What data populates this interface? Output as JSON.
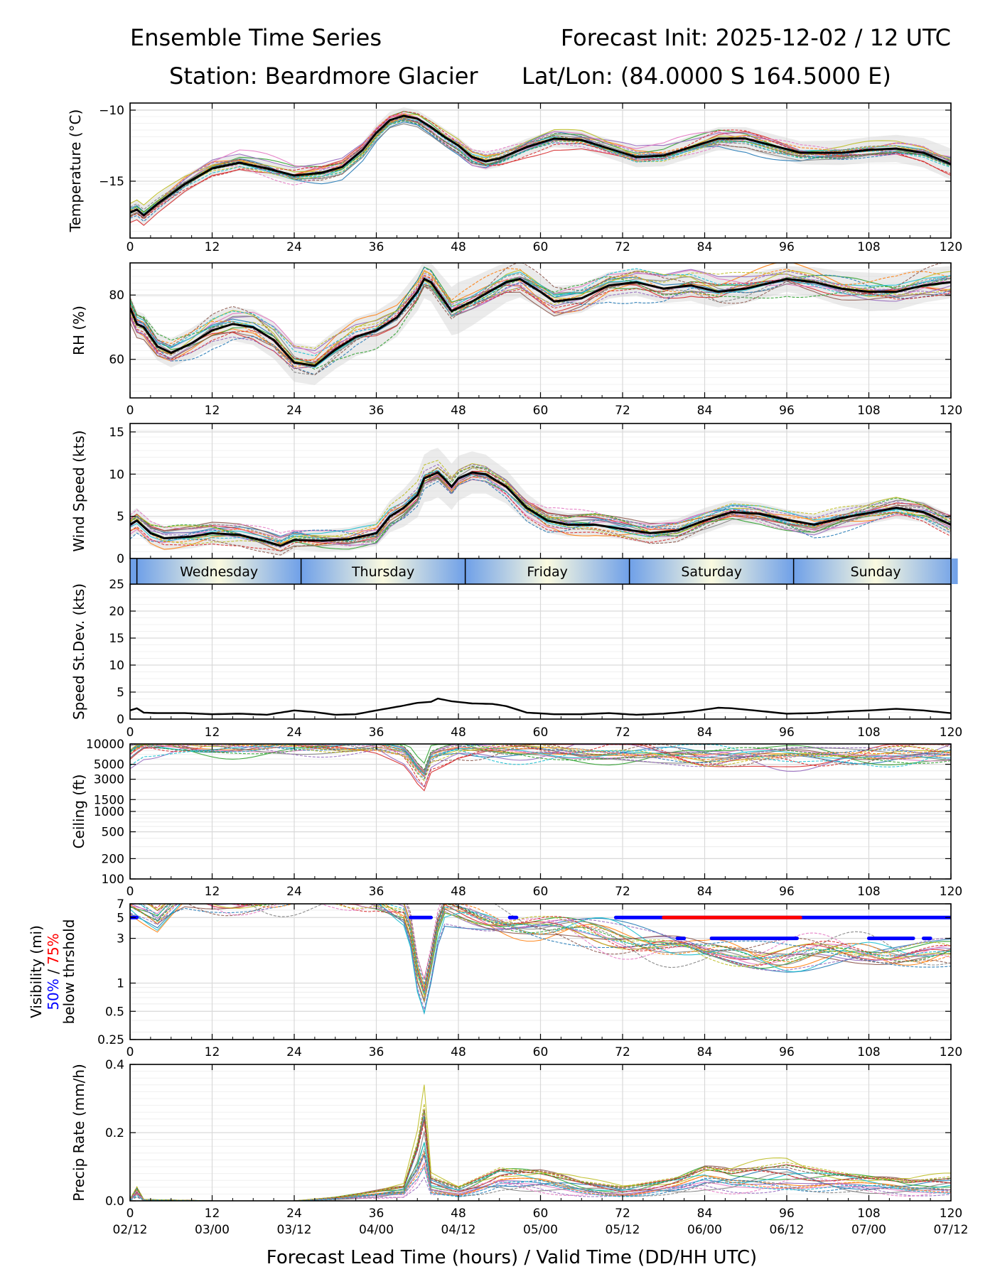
{
  "header": {
    "title_left": "Ensemble Time Series",
    "title_right": "Forecast Init: 2025-12-02 / 12 UTC",
    "station": "Station: Beardmore Glacier",
    "latlon": "Lat/Lon: (84.0000 S 164.5000 E)"
  },
  "colors": {
    "members": [
      "#1f77b4",
      "#ff7f0e",
      "#2ca02c",
      "#d62728",
      "#9467bd",
      "#8c564b",
      "#e377c2",
      "#7f7f7f",
      "#bcbd22",
      "#17becf"
    ],
    "mean": "#000000",
    "spread": "#d3d3d3",
    "vis50": "#0000ff",
    "vis75": "#ff0000",
    "day_band_edge": "#6fa0e8",
    "day_band_mid": "#fafae0"
  },
  "chart_data": {
    "type": "line",
    "x_label": "Forecast Lead Time (hours) / Valid Time (DD/HH UTC)",
    "x_range": [
      0,
      120
    ],
    "x_ticks": [
      0,
      12,
      24,
      36,
      48,
      60,
      72,
      84,
      96,
      108,
      120
    ],
    "x_tick_labels": [
      "0",
      "12",
      "24",
      "36",
      "48",
      "60",
      "72",
      "84",
      "96",
      "108",
      "120"
    ],
    "valid_time_labels": [
      "02/12",
      "03/00",
      "03/12",
      "04/00",
      "04/12",
      "05/00",
      "05/12",
      "06/00",
      "06/12",
      "07/00",
      "07/12"
    ],
    "members": 20,
    "day_band": {
      "boundaries": [
        1,
        25,
        49,
        73,
        97
      ],
      "days": [
        {
          "label": "Wednesday",
          "center": 13
        },
        {
          "label": "Thursday",
          "center": 37
        },
        {
          "label": "Friday",
          "center": 61
        },
        {
          "label": "Saturday",
          "center": 85
        },
        {
          "label": "Sunday",
          "center": 109
        }
      ]
    },
    "panels": [
      {
        "id": "temperature",
        "ylabel": "Temperature (°C)",
        "ylim": [
          -19,
          -9.5
        ],
        "yticks": [
          -10,
          -15
        ],
        "ytick_labels": [
          "−10",
          "−15"
        ],
        "mean": [
          [
            0,
            -17.2
          ],
          [
            1,
            -17.0
          ],
          [
            2,
            -17.4
          ],
          [
            4,
            -16.6
          ],
          [
            8,
            -15.2
          ],
          [
            12,
            -14.1
          ],
          [
            16,
            -13.7
          ],
          [
            20,
            -14.1
          ],
          [
            24,
            -14.6
          ],
          [
            28,
            -14.4
          ],
          [
            31,
            -14.0
          ],
          [
            34,
            -12.8
          ],
          [
            36,
            -11.6
          ],
          [
            38,
            -10.7
          ],
          [
            40,
            -10.4
          ],
          [
            42,
            -10.6
          ],
          [
            44,
            -11.2
          ],
          [
            46,
            -11.9
          ],
          [
            48,
            -12.5
          ],
          [
            50,
            -13.3
          ],
          [
            52,
            -13.6
          ],
          [
            54,
            -13.4
          ],
          [
            58,
            -12.6
          ],
          [
            62,
            -12.0
          ],
          [
            66,
            -12.1
          ],
          [
            70,
            -12.7
          ],
          [
            74,
            -13.3
          ],
          [
            78,
            -13.2
          ],
          [
            82,
            -12.6
          ],
          [
            86,
            -12.0
          ],
          [
            90,
            -12.0
          ],
          [
            94,
            -12.5
          ],
          [
            98,
            -13.0
          ],
          [
            104,
            -13.0
          ],
          [
            108,
            -12.8
          ],
          [
            112,
            -12.7
          ],
          [
            116,
            -13.0
          ],
          [
            120,
            -13.8
          ]
        ],
        "spread": [
          [
            0,
            0.7
          ],
          [
            24,
            0.5
          ],
          [
            40,
            0.6
          ],
          [
            48,
            0.6
          ],
          [
            60,
            0.6
          ],
          [
            72,
            0.7
          ],
          [
            84,
            0.8
          ],
          [
            96,
            0.8
          ],
          [
            108,
            0.9
          ],
          [
            120,
            1.1
          ]
        ],
        "member_amp": 0.7
      },
      {
        "id": "rh",
        "ylabel": "RH (%)",
        "ylim": [
          48,
          90
        ],
        "yticks": [
          60,
          80
        ],
        "ytick_labels": [
          "60",
          "80"
        ],
        "mean": [
          [
            0,
            76
          ],
          [
            1,
            71
          ],
          [
            2,
            70
          ],
          [
            4,
            64
          ],
          [
            6,
            62
          ],
          [
            9,
            65
          ],
          [
            12,
            69
          ],
          [
            15,
            71
          ],
          [
            18,
            70
          ],
          [
            21,
            66
          ],
          [
            24,
            59
          ],
          [
            27,
            58
          ],
          [
            30,
            63
          ],
          [
            33,
            67
          ],
          [
            36,
            69
          ],
          [
            39,
            73
          ],
          [
            42,
            81
          ],
          [
            43,
            85
          ],
          [
            44,
            84
          ],
          [
            46,
            78
          ],
          [
            47,
            75
          ],
          [
            50,
            78
          ],
          [
            55,
            84
          ],
          [
            57,
            85
          ],
          [
            60,
            81
          ],
          [
            62,
            78
          ],
          [
            66,
            79
          ],
          [
            70,
            83
          ],
          [
            74,
            84
          ],
          [
            78,
            82
          ],
          [
            82,
            83
          ],
          [
            86,
            81
          ],
          [
            90,
            82
          ],
          [
            94,
            84
          ],
          [
            96,
            85
          ],
          [
            100,
            84
          ],
          [
            104,
            82
          ],
          [
            108,
            81
          ],
          [
            112,
            81
          ],
          [
            116,
            83
          ],
          [
            120,
            84
          ]
        ],
        "spread": [
          [
            0,
            4
          ],
          [
            12,
            5
          ],
          [
            24,
            6
          ],
          [
            36,
            6
          ],
          [
            44,
            6
          ],
          [
            48,
            8
          ],
          [
            60,
            5
          ],
          [
            72,
            4
          ],
          [
            84,
            5
          ],
          [
            96,
            4
          ],
          [
            108,
            6
          ],
          [
            120,
            5
          ]
        ],
        "member_amp": 5
      },
      {
        "id": "wind",
        "ylabel": "Wind Speed (kts)",
        "ylim": [
          0,
          16
        ],
        "yticks": [
          0,
          5,
          10,
          15
        ],
        "ytick_labels": [
          "0",
          "5",
          "10",
          "15"
        ],
        "mean": [
          [
            0,
            4
          ],
          [
            1,
            4.5
          ],
          [
            3,
            3
          ],
          [
            5,
            2.4
          ],
          [
            9,
            2.6
          ],
          [
            12,
            3.0
          ],
          [
            16,
            2.8
          ],
          [
            20,
            2.0
          ],
          [
            22,
            1.5
          ],
          [
            24,
            2.2
          ],
          [
            28,
            2.1
          ],
          [
            32,
            2.3
          ],
          [
            36,
            3.0
          ],
          [
            38,
            5.0
          ],
          [
            40,
            6.0
          ],
          [
            42,
            7.5
          ],
          [
            43,
            9.5
          ],
          [
            45,
            10.2
          ],
          [
            46,
            9.4
          ],
          [
            47,
            8.5
          ],
          [
            48,
            9.5
          ],
          [
            50,
            10.2
          ],
          [
            52,
            10.0
          ],
          [
            55,
            8.5
          ],
          [
            58,
            6.0
          ],
          [
            61,
            4.5
          ],
          [
            64,
            4.0
          ],
          [
            68,
            4.0
          ],
          [
            72,
            3.5
          ],
          [
            76,
            3.0
          ],
          [
            80,
            3.3
          ],
          [
            84,
            4.5
          ],
          [
            88,
            5.5
          ],
          [
            92,
            5.3
          ],
          [
            96,
            4.6
          ],
          [
            100,
            4.0
          ],
          [
            104,
            4.8
          ],
          [
            108,
            5.4
          ],
          [
            112,
            6.0
          ],
          [
            116,
            5.5
          ],
          [
            120,
            4.0
          ]
        ],
        "spread": [
          [
            0,
            1.5
          ],
          [
            24,
            1.2
          ],
          [
            36,
            1.5
          ],
          [
            44,
            3
          ],
          [
            50,
            2.5
          ],
          [
            60,
            1.5
          ],
          [
            72,
            1.2
          ],
          [
            84,
            1.5
          ],
          [
            96,
            1.2
          ],
          [
            108,
            1.3
          ],
          [
            120,
            1.2
          ]
        ],
        "member_amp": 1.5
      },
      {
        "id": "speed_stdev",
        "ylabel": "Speed St.Dev. (kts)",
        "ylim": [
          0,
          25
        ],
        "yticks": [
          0,
          5,
          10,
          15,
          20,
          25
        ],
        "ytick_labels": [
          "0",
          "5",
          "10",
          "15",
          "20",
          "25"
        ],
        "mean": [
          [
            0,
            1.6
          ],
          [
            1,
            2.0
          ],
          [
            2,
            1.2
          ],
          [
            4,
            1.1
          ],
          [
            8,
            1.1
          ],
          [
            12,
            0.9
          ],
          [
            16,
            1.0
          ],
          [
            20,
            0.8
          ],
          [
            22,
            1.2
          ],
          [
            24,
            1.6
          ],
          [
            27,
            1.3
          ],
          [
            30,
            0.8
          ],
          [
            33,
            0.9
          ],
          [
            36,
            1.6
          ],
          [
            40,
            2.5
          ],
          [
            42,
            3.0
          ],
          [
            44,
            3.2
          ],
          [
            45,
            3.8
          ],
          [
            47,
            3.3
          ],
          [
            50,
            2.9
          ],
          [
            53,
            2.8
          ],
          [
            55,
            2.4
          ],
          [
            58,
            1.2
          ],
          [
            62,
            0.9
          ],
          [
            66,
            0.9
          ],
          [
            70,
            1.1
          ],
          [
            74,
            0.8
          ],
          [
            78,
            1.0
          ],
          [
            82,
            1.4
          ],
          [
            86,
            2.1
          ],
          [
            88,
            2.0
          ],
          [
            92,
            1.5
          ],
          [
            96,
            1.0
          ],
          [
            100,
            1.1
          ],
          [
            104,
            1.4
          ],
          [
            108,
            1.6
          ],
          [
            112,
            1.9
          ],
          [
            116,
            1.6
          ],
          [
            120,
            1.1
          ]
        ]
      },
      {
        "id": "ceiling",
        "ylabel": "Ceiling (ft)",
        "scale": "log",
        "ylim": [
          100,
          10000
        ],
        "yticks": [
          100,
          200,
          500,
          1000,
          1500,
          3000,
          5000,
          10000
        ],
        "ytick_labels": [
          "100",
          "200",
          "500",
          "1000",
          "1500",
          "3000",
          "5000",
          "10000"
        ],
        "member_base": [
          [
            0,
            7000
          ],
          [
            2,
            9800
          ],
          [
            12,
            9800
          ],
          [
            24,
            9500
          ],
          [
            36,
            8800
          ],
          [
            40,
            7000
          ],
          [
            42,
            4000
          ],
          [
            43,
            3200
          ],
          [
            44,
            6000
          ],
          [
            48,
            8500
          ],
          [
            60,
            8200
          ],
          [
            72,
            7500
          ],
          [
            84,
            6000
          ],
          [
            96,
            6500
          ],
          [
            108,
            7000
          ],
          [
            120,
            7500
          ]
        ]
      },
      {
        "id": "visibility",
        "ylabel": "Visibility (mi)",
        "ylabel_50": "50%",
        "ylabel_sep": " / ",
        "ylabel_75": "75%",
        "ylabel_3": "below thrshold",
        "scale": "log",
        "ylim": [
          0.25,
          7
        ],
        "yticks": [
          0.25,
          0.5,
          1,
          3,
          5,
          7
        ],
        "ytick_labels": [
          "0.25",
          "0.5",
          "1",
          "3",
          "5",
          "7"
        ],
        "member_base": [
          [
            0,
            8
          ],
          [
            4,
            5
          ],
          [
            8,
            8
          ],
          [
            36,
            8
          ],
          [
            40,
            6
          ],
          [
            42,
            1.2
          ],
          [
            43,
            0.7
          ],
          [
            44,
            1.5
          ],
          [
            46,
            6
          ],
          [
            52,
            5
          ],
          [
            60,
            4
          ],
          [
            72,
            3
          ],
          [
            84,
            2
          ],
          [
            96,
            2
          ],
          [
            108,
            2.2
          ],
          [
            120,
            2
          ]
        ],
        "thresh_50": [
          {
            "y": 5,
            "from": 0,
            "to": 1
          },
          {
            "y": 5,
            "from": 41,
            "to": 44
          },
          {
            "y": 5,
            "from": 55.5,
            "to": 56.5
          },
          {
            "y": 5,
            "from": 71,
            "to": 120
          },
          {
            "y": 3,
            "from": 80,
            "to": 81
          },
          {
            "y": 3,
            "from": 85,
            "to": 97.5
          },
          {
            "y": 3,
            "from": 108,
            "to": 114.5
          },
          {
            "y": 3,
            "from": 116,
            "to": 117
          }
        ],
        "thresh_75": [
          {
            "y": 5,
            "from": 78,
            "to": 98
          }
        ]
      },
      {
        "id": "precip",
        "ylabel": "Precip Rate (mm/h)",
        "ylim": [
          0,
          0.4
        ],
        "yticks": [
          0.0,
          0.2,
          0.4
        ],
        "ytick_labels": [
          "0.0",
          "0.2",
          "0.4"
        ],
        "member_base": [
          [
            0,
            0.004
          ],
          [
            1,
            0.03
          ],
          [
            2,
            0.003
          ],
          [
            12,
            0.0
          ],
          [
            24,
            0.0
          ],
          [
            30,
            0.008
          ],
          [
            36,
            0.02
          ],
          [
            40,
            0.03
          ],
          [
            42,
            0.12
          ],
          [
            43,
            0.2
          ],
          [
            44,
            0.05
          ],
          [
            48,
            0.03
          ],
          [
            54,
            0.07
          ],
          [
            60,
            0.06
          ],
          [
            66,
            0.04
          ],
          [
            72,
            0.03
          ],
          [
            80,
            0.05
          ],
          [
            84,
            0.07
          ],
          [
            88,
            0.06
          ],
          [
            96,
            0.08
          ],
          [
            104,
            0.06
          ],
          [
            108,
            0.05
          ],
          [
            114,
            0.04
          ],
          [
            120,
            0.05
          ]
        ]
      }
    ]
  }
}
